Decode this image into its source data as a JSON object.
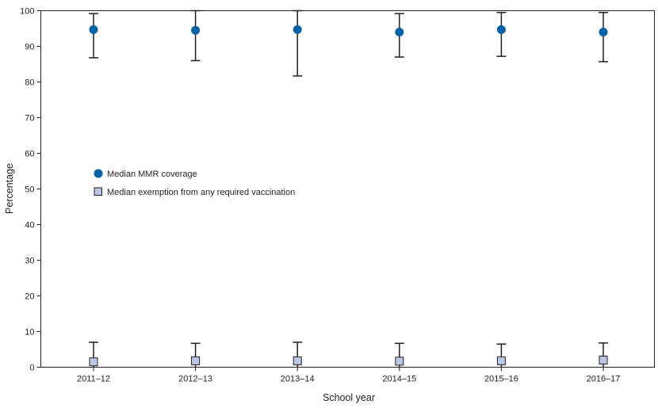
{
  "chart_data": {
    "type": "scatter",
    "title": "",
    "xlabel": "School year",
    "ylabel": "Percentage",
    "categories": [
      "2011–12",
      "2012–13",
      "2013–14",
      "2014–15",
      "2015–16",
      "2016–17"
    ],
    "ylim": [
      0,
      100
    ],
    "yticks": [
      0,
      10,
      20,
      30,
      40,
      50,
      60,
      70,
      80,
      90,
      100
    ],
    "grid": false,
    "legend_position": "middle-left",
    "series": [
      {
        "name": "Median MMR coverage",
        "marker": "circle",
        "color": "#0062a8",
        "values": [
          94.7,
          94.5,
          94.7,
          94.0,
          94.7,
          94.0
        ],
        "error_low": [
          86.8,
          86.0,
          81.7,
          87.0,
          87.2,
          85.7
        ],
        "error_high": [
          99.2,
          100.0,
          100.0,
          99.2,
          99.5,
          99.5
        ]
      },
      {
        "name": "Median exemption from any required vaccination",
        "marker": "square",
        "color": "#b9c6e4",
        "values": [
          1.5,
          1.8,
          1.8,
          1.7,
          1.8,
          2.0
        ],
        "error_low": [
          0.0,
          0.0,
          0.0,
          0.0,
          0.0,
          0.0
        ],
        "error_high": [
          7.0,
          6.7,
          7.0,
          6.7,
          6.5,
          6.8
        ]
      }
    ]
  }
}
